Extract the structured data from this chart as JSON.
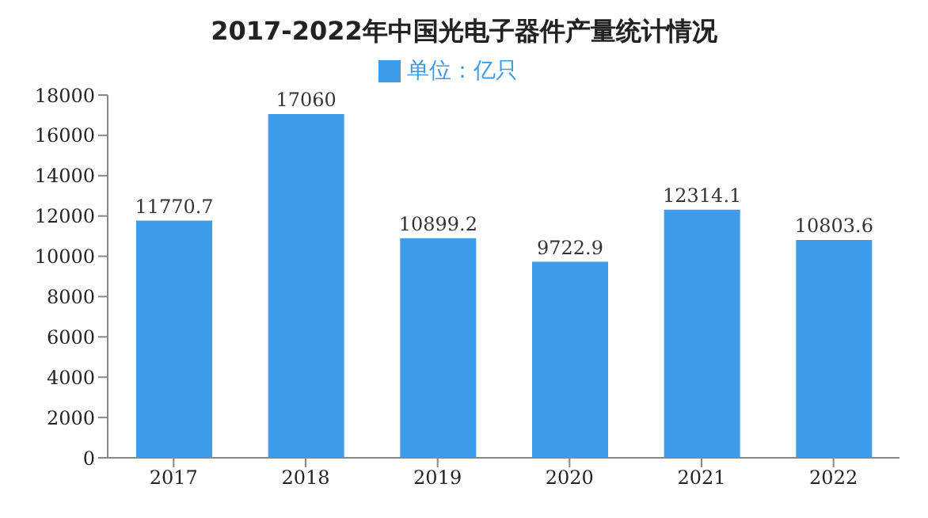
{
  "chart_data": {
    "type": "bar",
    "title": "2017-2022年中国光电子器件产量统计情况",
    "categories": [
      "2017",
      "2018",
      "2019",
      "2020",
      "2021",
      "2022"
    ],
    "series": [
      {
        "name": "单位：亿只",
        "color": "#3d9be9",
        "values": [
          11770.7,
          17060,
          10899.2,
          9722.9,
          12314.1,
          10803.6
        ]
      }
    ],
    "ylim": [
      0,
      18000
    ],
    "yticks": [
      0,
      2000,
      4000,
      6000,
      8000,
      10000,
      12000,
      14000,
      16000,
      18000
    ],
    "grid": false,
    "legend": "top",
    "data_labels": true
  }
}
